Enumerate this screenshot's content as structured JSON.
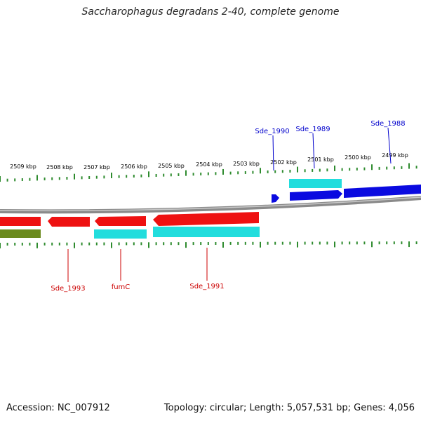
{
  "title": "Saccharophagus degradans 2-40, complete genome",
  "footer": {
    "accession": "Accession: NC_007912",
    "topology": "Topology: circular; Length: 5,057,531 bp; Genes: 4,056"
  },
  "colors": {
    "backbone": "#8a8a8a",
    "forward_cds": "#0a0ae0",
    "reverse_cds": "#ee1111",
    "forward_gene_label": "#0000cc",
    "reverse_gene_label": "#cc0000",
    "protein_cds": "#22dddd",
    "other_feature": "#6b8a1e",
    "tick_marks": "#2e8b2e"
  },
  "ticks": [
    {
      "label": "2509 kbp"
    },
    {
      "label": "2508 kbp"
    },
    {
      "label": "2507 kbp"
    },
    {
      "label": "2506 kbp"
    },
    {
      "label": "2505 kbp"
    },
    {
      "label": "2504 kbp"
    },
    {
      "label": "2503 kbp"
    },
    {
      "label": "2502 kbp"
    },
    {
      "label": "2501 kbp"
    },
    {
      "label": "2500 kbp"
    },
    {
      "label": "2499 kbp"
    }
  ],
  "gene_labels": {
    "forward": [
      "Sde_1990",
      "Sde_1989",
      "Sde_1988"
    ],
    "reverse": [
      "Sde_1993",
      "fumC",
      "Sde_1991"
    ]
  }
}
